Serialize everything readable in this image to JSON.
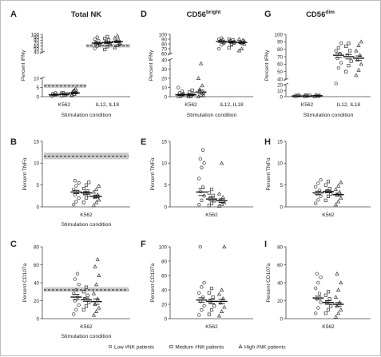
{
  "legend": {
    "items": [
      {
        "label": "Low #NK patients",
        "marker": "circle"
      },
      {
        "label": "Medium #NK patients",
        "marker": "square"
      },
      {
        "label": "High #NK patients",
        "marker": "triangle"
      }
    ]
  },
  "colors": {
    "marker": "#333333",
    "band": "#c8c8c8",
    "axis": "#444444"
  },
  "chart_data": [
    {
      "panel": "A",
      "title": "Total NK",
      "title_sup": "",
      "type": "scatter",
      "ylabel": "Percent IFNγ",
      "xlabel": "Stimulation condition",
      "categories": [
        "K562",
        "IL12, IL18"
      ],
      "broken_axis": true,
      "lower_ticks": [
        0,
        5,
        10
      ],
      "upper_ticks": [
        40,
        50,
        60,
        70,
        80,
        90,
        100
      ],
      "reference": {
        "value": 5.8,
        "band": [
          4.8,
          7.0
        ],
        "upper_value": 61,
        "upper_band": [
          55,
          67
        ]
      },
      "series": [
        {
          "name": "Low #NK patients",
          "marker": "circle",
          "groups": [
            {
              "mean": 1.0,
              "sem": 0.3,
              "values": [
                0.4,
                0.8,
                1.2,
                1.6,
                2.0,
                0.6,
                1.0
              ]
            },
            {
              "mean": 70,
              "sem": 3,
              "values": [
                52,
                60,
                66,
                72,
                78,
                84,
                90,
                64
              ]
            }
          ]
        },
        {
          "name": "Medium #NK patients",
          "marker": "square",
          "groups": [
            {
              "mean": 1.3,
              "sem": 0.3,
              "values": [
                0.5,
                1.0,
                1.5,
                2.2,
                0.8,
                1.8
              ]
            },
            {
              "mean": 72,
              "sem": 3,
              "values": [
                48,
                58,
                66,
                74,
                80,
                86,
                92,
                70
              ]
            }
          ]
        },
        {
          "name": "High #NK patients",
          "marker": "triangle",
          "groups": [
            {
              "mean": 2.0,
              "sem": 0.5,
              "values": [
                0.6,
                1.4,
                2.4,
                3.0,
                4.2,
                1.0,
                3.5
              ]
            },
            {
              "mean": 75,
              "sem": 3,
              "values": [
                55,
                62,
                70,
                76,
                82,
                88,
                95,
                68
              ]
            }
          ]
        }
      ]
    },
    {
      "panel": "D",
      "title": "CD56",
      "title_sup": "bright",
      "type": "scatter",
      "ylabel": "Percent IFNγ",
      "xlabel": "Stimulation condition",
      "categories": [
        "K562",
        "IL12, IL18"
      ],
      "broken_axis": false,
      "lower_ticks": [
        0,
        10,
        20,
        30,
        40
      ],
      "upper_ticks": [
        60,
        70,
        80,
        90,
        100
      ],
      "reference": null,
      "series": [
        {
          "name": "Low #NK patients",
          "marker": "circle",
          "groups": [
            {
              "mean": 2,
              "sem": 0.8,
              "values": [
                0,
                1,
                2,
                4,
                6,
                10,
                0.5,
                3
              ]
            },
            {
              "mean": 85,
              "sem": 2,
              "values": [
                70,
                78,
                82,
                86,
                88,
                90,
                92,
                84
              ]
            }
          ]
        },
        {
          "name": "Medium #NK patients",
          "marker": "square",
          "groups": [
            {
              "mean": 2,
              "sem": 0.8,
              "values": [
                0,
                1,
                3,
                5,
                7,
                2,
                0.5
              ]
            },
            {
              "mean": 84,
              "sem": 2,
              "values": [
                72,
                78,
                82,
                86,
                88,
                90,
                80,
                84
              ]
            }
          ]
        },
        {
          "name": "High #NK patients",
          "marker": "triangle",
          "groups": [
            {
              "mean": 5,
              "sem": 2,
              "values": [
                0,
                2,
                4,
                8,
                12,
                20,
                36,
                1,
                6
              ]
            },
            {
              "mean": 83,
              "sem": 2,
              "values": [
                66,
                70,
                80,
                85,
                88,
                90,
                82,
                86
              ]
            }
          ]
        }
      ]
    },
    {
      "panel": "G",
      "title": "CD56",
      "title_sup": "dim",
      "type": "scatter",
      "ylabel": "Percent IFNγ",
      "xlabel": "Stimulation condition",
      "categories": [
        "K562",
        "IL12, IL18"
      ],
      "broken_axis": false,
      "lower_ticks": [
        0,
        10,
        20
      ],
      "upper_ticks": [
        40,
        50,
        60,
        70,
        80,
        90,
        100
      ],
      "reference": null,
      "series": [
        {
          "name": "Low #NK patients",
          "marker": "circle",
          "groups": [
            {
              "mean": 1,
              "sem": 0.3,
              "values": [
                0.5,
                1,
                1.5,
                2,
                3
              ]
            },
            {
              "mean": 72,
              "sem": 3,
              "values": [
                22,
                55,
                62,
                68,
                74,
                78,
                82,
                88
              ]
            }
          ]
        },
        {
          "name": "Medium #NK patients",
          "marker": "square",
          "groups": [
            {
              "mean": 1,
              "sem": 0.3,
              "values": [
                0.5,
                1,
                2,
                2.5
              ]
            },
            {
              "mean": 70,
              "sem": 3,
              "values": [
                50,
                58,
                64,
                72,
                78,
                84,
                88
              ]
            }
          ]
        },
        {
          "name": "High #NK patients",
          "marker": "triangle",
          "groups": [
            {
              "mean": 1.5,
              "sem": 0.4,
              "values": [
                0.5,
                1.5,
                2.5,
                3,
                1
              ]
            },
            {
              "mean": 68,
              "sem": 3,
              "values": [
                45,
                52,
                60,
                66,
                72,
                78,
                85,
                90
              ]
            }
          ]
        }
      ]
    },
    {
      "panel": "B",
      "title": "",
      "title_sup": "",
      "type": "scatter",
      "ylabel": "Percent TNFα",
      "xlabel": "Stimulation condition",
      "categories": [
        "K562"
      ],
      "ylim": [
        0,
        15
      ],
      "ticks": [
        0,
        5,
        10,
        15
      ],
      "reference": {
        "value": 11.6,
        "band": [
          10.9,
          12.4
        ]
      },
      "series": [
        {
          "name": "Low #NK patients",
          "marker": "circle",
          "groups": [
            {
              "mean": 3.4,
              "sem": 0.4,
              "values": [
                0.5,
                1.2,
                2,
                2.8,
                3.5,
                4,
                4.8,
                5.5,
                6
              ]
            }
          ]
        },
        {
          "name": "Medium #NK patients",
          "marker": "square",
          "groups": [
            {
              "mean": 3.2,
              "sem": 0.3,
              "values": [
                1,
                2,
                2.6,
                3,
                3.6,
                4.2,
                5,
                5.6
              ]
            }
          ]
        },
        {
          "name": "High #NK patients",
          "marker": "triangle",
          "groups": [
            {
              "mean": 2.4,
              "sem": 0.3,
              "values": [
                0.3,
                1,
                1.6,
                2.2,
                2.8,
                3.4,
                4,
                4.8
              ]
            }
          ]
        }
      ]
    },
    {
      "panel": "E",
      "title": "",
      "title_sup": "",
      "type": "scatter",
      "ylabel": "Percent TNFα",
      "xlabel": "",
      "categories": [
        "K562"
      ],
      "ylim": [
        0,
        15
      ],
      "ticks": [
        0,
        5,
        10,
        15
      ],
      "reference": null,
      "series": [
        {
          "name": "Low #NK patients",
          "marker": "circle",
          "groups": [
            {
              "mean": 3.4,
              "sem": 0.8,
              "values": [
                0.5,
                1.5,
                2.5,
                3.5,
                4.5,
                6.5,
                9,
                10,
                11,
                13
              ]
            }
          ]
        },
        {
          "name": "Medium #NK patients",
          "marker": "square",
          "groups": [
            {
              "mean": 1.8,
              "sem": 0.4,
              "values": [
                0.3,
                0.8,
                1.4,
                2,
                2.6,
                3.2,
                4
              ]
            }
          ]
        },
        {
          "name": "High #NK patients",
          "marker": "triangle",
          "groups": [
            {
              "mean": 1.4,
              "sem": 0.4,
              "values": [
                0.2,
                0.6,
                1,
                1.6,
                2.2,
                3,
                10
              ]
            }
          ]
        }
      ]
    },
    {
      "panel": "H",
      "title": "",
      "title_sup": "",
      "type": "scatter",
      "ylabel": "Percent TNFα",
      "xlabel": "",
      "categories": [
        "K562"
      ],
      "ylim": [
        0,
        15
      ],
      "ticks": [
        0,
        5,
        10,
        15
      ],
      "reference": null,
      "series": [
        {
          "name": "Low #NK patients",
          "marker": "circle",
          "groups": [
            {
              "mean": 3.2,
              "sem": 0.4,
              "values": [
                0.8,
                1.6,
                2.4,
                3,
                3.8,
                4.6,
                5.4,
                6.2
              ]
            }
          ]
        },
        {
          "name": "Medium #NK patients",
          "marker": "square",
          "groups": [
            {
              "mean": 3.5,
              "sem": 0.3,
              "values": [
                1.5,
                2.4,
                3,
                3.6,
                4.2,
                5,
                5.8
              ]
            }
          ]
        },
        {
          "name": "High #NK patients",
          "marker": "triangle",
          "groups": [
            {
              "mean": 2.8,
              "sem": 0.3,
              "values": [
                0.5,
                1.2,
                2,
                2.8,
                3.4,
                4,
                4.8,
                5.6
              ]
            }
          ]
        }
      ]
    },
    {
      "panel": "C",
      "title": "",
      "title_sup": "",
      "type": "scatter",
      "ylabel": "Percent CD107a",
      "xlabel": "Stimulation condition",
      "categories": [
        "K562"
      ],
      "ylim": [
        0,
        80
      ],
      "ticks": [
        0,
        20,
        40,
        60,
        80
      ],
      "reference": {
        "value": 32,
        "band": [
          30,
          35
        ]
      },
      "series": [
        {
          "name": "Low #NK patients",
          "marker": "circle",
          "groups": [
            {
              "mean": 24,
              "sem": 3,
              "values": [
                5,
                10,
                15,
                20,
                24,
                28,
                32,
                38,
                44,
                50
              ]
            }
          ]
        },
        {
          "name": "Medium #NK patients",
          "marker": "square",
          "groups": [
            {
              "mean": 21,
              "sem": 2,
              "values": [
                10,
                14,
                18,
                22,
                26,
                30,
                35
              ]
            }
          ]
        },
        {
          "name": "High #NK patients",
          "marker": "triangle",
          "groups": [
            {
              "mean": 19,
              "sem": 3,
              "values": [
                4,
                8,
                12,
                16,
                22,
                28,
                38,
                48,
                58,
                66
              ]
            }
          ]
        }
      ]
    },
    {
      "panel": "F",
      "title": "",
      "title_sup": "",
      "type": "scatter",
      "ylabel": "Percent CD107a",
      "xlabel": "",
      "categories": [
        "K562"
      ],
      "ylim": [
        0,
        100
      ],
      "ticks": [
        0,
        20,
        40,
        60,
        80,
        100
      ],
      "reference": null,
      "series": [
        {
          "name": "Low #NK patients",
          "marker": "circle",
          "groups": [
            {
              "mean": 26,
              "sem": 3,
              "values": [
                5,
                12,
                18,
                24,
                30,
                36,
                44,
                50,
                100
              ]
            }
          ]
        },
        {
          "name": "Medium #NK patients",
          "marker": "square",
          "groups": [
            {
              "mean": 24,
              "sem": 3,
              "values": [
                6,
                12,
                18,
                24,
                30,
                36,
                42
              ]
            }
          ]
        },
        {
          "name": "High #NK patients",
          "marker": "triangle",
          "groups": [
            {
              "mean": 24,
              "sem": 3,
              "values": [
                4,
                10,
                16,
                22,
                28,
                34,
                40,
                100
              ]
            }
          ]
        }
      ]
    },
    {
      "panel": "I",
      "title": "",
      "title_sup": "",
      "type": "scatter",
      "ylabel": "Percent CD107a",
      "xlabel": "",
      "categories": [
        "K562"
      ],
      "ylim": [
        0,
        80
      ],
      "ticks": [
        0,
        20,
        40,
        60,
        80
      ],
      "reference": null,
      "series": [
        {
          "name": "Low #NK patients",
          "marker": "circle",
          "groups": [
            {
              "mean": 23,
              "sem": 2,
              "values": [
                6,
                12,
                18,
                22,
                28,
                34,
                40,
                46,
                50
              ]
            }
          ]
        },
        {
          "name": "Medium #NK patients",
          "marker": "square",
          "groups": [
            {
              "mean": 18,
              "sem": 2,
              "values": [
                6,
                10,
                14,
                18,
                22,
                26,
                30
              ]
            }
          ]
        },
        {
          "name": "High #NK patients",
          "marker": "triangle",
          "groups": [
            {
              "mean": 16,
              "sem": 2,
              "values": [
                2,
                6,
                10,
                14,
                18,
                24,
                32,
                40,
                50
              ]
            }
          ]
        }
      ]
    }
  ]
}
